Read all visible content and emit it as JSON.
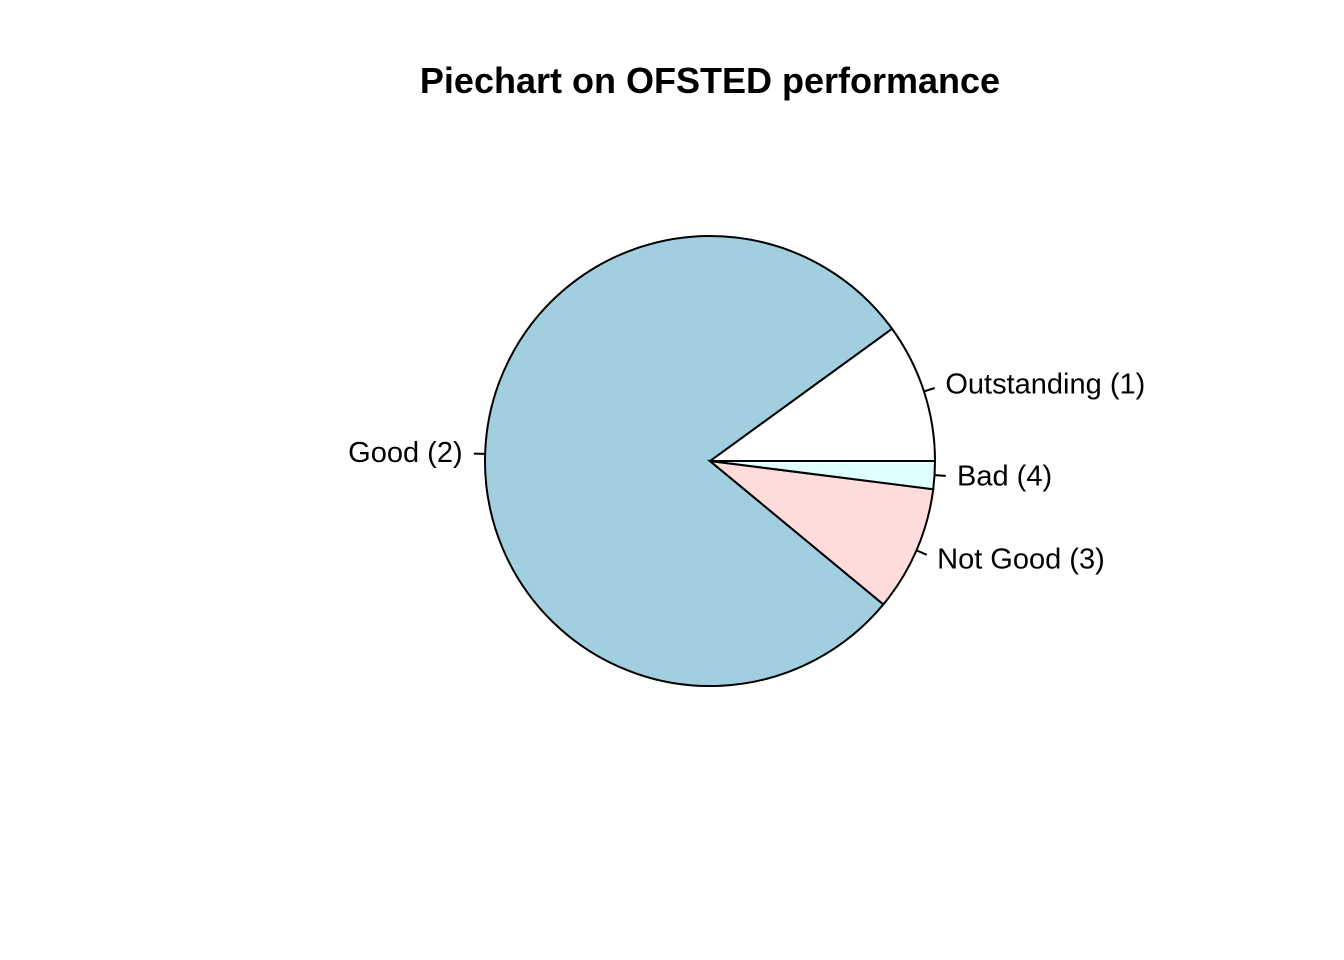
{
  "chart_data": {
    "type": "pie",
    "title": "Piechart on OFSTED performance",
    "start_angle_degrees": 0,
    "direction": "counterclockwise",
    "categories": [
      "Outstanding (1)",
      "Good (2)",
      "Not Good (3)",
      "Bad (4)"
    ],
    "values": [
      10,
      79,
      9,
      2
    ],
    "colors": [
      "#ffffff",
      "#a1cfe0",
      "#ffdcdc",
      "#e0ffff"
    ],
    "outline_color": "#000000",
    "legend": "none",
    "grid": false
  }
}
